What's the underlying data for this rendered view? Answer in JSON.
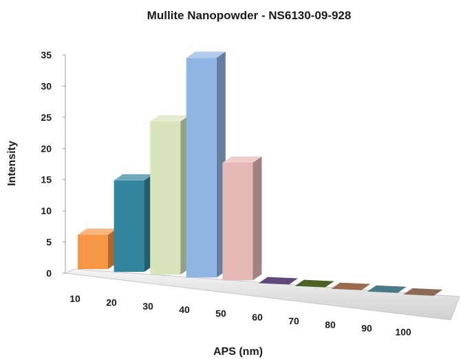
{
  "chart_data": {
    "type": "bar",
    "title": "Mullite Nanopowder - NS6130-09-928",
    "xlabel": "APS (nm)",
    "ylabel": "Intensity",
    "categories": [
      "10",
      "20",
      "30",
      "40",
      "50",
      "60",
      "70",
      "80",
      "90",
      "100"
    ],
    "values": [
      5.5,
      14.5,
      24,
      34,
      18,
      0,
      0,
      0,
      0,
      0
    ],
    "ylim": [
      0,
      35
    ],
    "yticks": [
      "0",
      "5",
      "10",
      "15",
      "20",
      "25",
      "30",
      "35"
    ],
    "bar_colors": [
      "#f79646",
      "#31849b",
      "#d7e4bc",
      "#8eb4e3",
      "#e6b9b8",
      "#5f497a",
      "#4f6228",
      "#976b4b",
      "#4b7a87",
      "#8c6a55"
    ],
    "grid": false,
    "legend": "none",
    "style": "3d-perspective"
  }
}
